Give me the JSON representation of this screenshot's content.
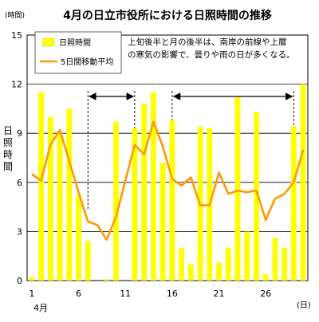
{
  "chart_data": {
    "type": "bar",
    "title": "4月の日立市役所における日照時間の推移",
    "ylabel": "日照時間",
    "yunit_label": "(時間)",
    "xunit_label": "(日)",
    "month_label": "4月",
    "ylim": [
      0,
      15
    ],
    "yticks": [
      "0",
      "3",
      "6",
      "9",
      "12",
      "15"
    ],
    "xticks": [
      {
        "day": 1,
        "label": "1"
      },
      {
        "day": 6,
        "label": "6"
      },
      {
        "day": 11,
        "label": "11"
      },
      {
        "day": 16,
        "label": "16"
      },
      {
        "day": 21,
        "label": "21"
      },
      {
        "day": 26,
        "label": "26"
      }
    ],
    "x": [
      1,
      2,
      3,
      4,
      5,
      6,
      7,
      8,
      9,
      10,
      11,
      12,
      13,
      14,
      15,
      16,
      17,
      18,
      19,
      20,
      21,
      22,
      23,
      24,
      25,
      26,
      27,
      28,
      29,
      30
    ],
    "series": [
      {
        "name": "日照時間",
        "type": "bar",
        "color": "#ffff00",
        "values": [
          0.2,
          11.5,
          10.0,
          9.0,
          10.5,
          5.2,
          2.4,
          0.0,
          0.1,
          9.7,
          0.0,
          9.3,
          10.8,
          11.5,
          7.2,
          9.8,
          2.0,
          1.0,
          9.4,
          9.3,
          1.1,
          2.0,
          11.2,
          3.0,
          10.3,
          0.4,
          2.6,
          2.0,
          9.4,
          12.0
        ]
      },
      {
        "name": "5日間移動平均",
        "type": "line",
        "color": "#ff9900",
        "values": [
          6.5,
          6.1,
          8.3,
          9.2,
          7.3,
          5.4,
          3.6,
          3.4,
          2.5,
          3.9,
          6.1,
          8.3,
          7.7,
          9.7,
          8.2,
          6.2,
          5.8,
          6.3,
          4.6,
          4.6,
          6.6,
          5.3,
          5.5,
          5.4,
          5.5,
          3.7,
          5.0,
          5.3,
          6.0,
          8.0
        ]
      }
    ],
    "annotation": "上旬後半と月の後半は、南岸の前線や上層の寒気の影響で、曇りや雨の日が多くなる。",
    "annotation_lines": [
      "上旬後半と月の後半は、南岸の前線や上層",
      "の寒気の影響で、曇りや雨の日が多くなる。"
    ],
    "periods": [
      [
        6.5,
        11.5
      ],
      [
        15.5,
        28.5
      ]
    ],
    "legend_position": "top-left",
    "grid": "horizontal"
  }
}
